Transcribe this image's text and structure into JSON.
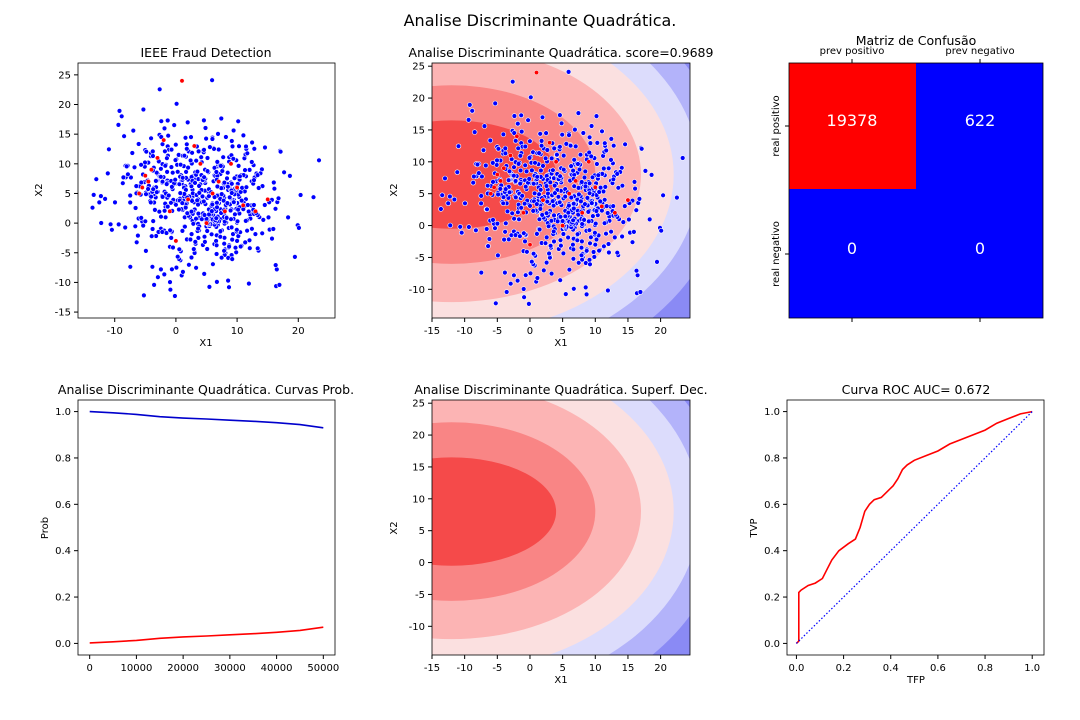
{
  "figure": {
    "suptitle": "Analise Discriminante Quadrática.",
    "colors": {
      "blue": "#0000ff",
      "red": "#ff0000",
      "dark_blue": "#0000cc"
    }
  },
  "chart_data": [
    {
      "id": "scatter",
      "type": "scatter",
      "title": "IEEE Fraud Detection",
      "xlabel": "X1",
      "ylabel": "X2",
      "xlim": [
        -16,
        26
      ],
      "ylim": [
        -16,
        27
      ],
      "xticks": [
        -10,
        0,
        10,
        20
      ],
      "yticks": [
        -15,
        -10,
        -5,
        0,
        5,
        10,
        15,
        20,
        25
      ],
      "series": [
        {
          "color": "#0000ff",
          "clusters": [
            [
              -3,
              6,
              2,
              30
            ],
            [
              5,
              3,
              3,
              60
            ],
            [
              9,
              4,
              2,
              50
            ],
            [
              9,
              -4,
              1.2,
              20
            ],
            [
              -1,
              10,
              2,
              15
            ]
          ],
          "spread": [
            4,
            9.5,
            8.5,
            480
          ]
        },
        {
          "color": "#ff0000",
          "points": [
            [
              -5,
              8
            ],
            [
              -4.5,
              7
            ],
            [
              -5.5,
              6
            ],
            [
              -3,
              11
            ],
            [
              1,
              24
            ],
            [
              -1,
              2
            ],
            [
              2,
              4
            ],
            [
              9,
              10
            ],
            [
              11,
              3
            ],
            [
              13,
              2
            ],
            [
              5,
              0
            ],
            [
              4,
              10
            ],
            [
              7,
              7
            ],
            [
              -2,
              14
            ],
            [
              15,
              4
            ],
            [
              0,
              -3
            ],
            [
              -6,
              5
            ],
            [
              3,
              13
            ],
            [
              6,
              5
            ],
            [
              8,
              2
            ],
            [
              -4,
              9
            ],
            [
              10,
              6
            ]
          ]
        }
      ]
    },
    {
      "id": "boundary",
      "type": "contour",
      "title": "Analise Discriminante Quadrática. score=0.9689",
      "xlabel": "X1",
      "ylabel": "X2",
      "xlim": [
        -15,
        24.5
      ],
      "ylim": [
        -14.5,
        25.5
      ],
      "xticks": [
        -15,
        -10,
        -5,
        0,
        5,
        10,
        15,
        20
      ],
      "yticks": [
        -10,
        -5,
        0,
        5,
        10,
        15,
        20,
        25
      ],
      "overlay": "scatter"
    },
    {
      "id": "cm",
      "type": "heatmap",
      "title": "Matriz de Confusão",
      "col_labels": [
        "prev positivo",
        "prev negativo"
      ],
      "row_labels": [
        "real positivo",
        "real negativo"
      ],
      "values": [
        [
          19378,
          622
        ],
        [
          0,
          0
        ]
      ],
      "cell_colors": [
        [
          "#ff0000",
          "#0000ff"
        ],
        [
          "#0000ff",
          "#0000ff"
        ]
      ]
    },
    {
      "id": "prob",
      "type": "line",
      "title": "Analise Discriminante Quadrática. Curvas Prob.",
      "xlabel": "",
      "ylabel": "Prob",
      "xlim": [
        -2500,
        52500
      ],
      "ylim": [
        -0.05,
        1.05
      ],
      "xticks": [
        0,
        10000,
        20000,
        30000,
        40000,
        50000
      ],
      "yticks": [
        0.0,
        0.2,
        0.4,
        0.6,
        0.8,
        1.0
      ],
      "series": [
        {
          "color": "#0000cc",
          "x": [
            0,
            5000,
            10000,
            15000,
            20000,
            25000,
            30000,
            35000,
            40000,
            45000,
            50000
          ],
          "values": [
            1.0,
            0.995,
            0.988,
            0.978,
            0.972,
            0.968,
            0.963,
            0.958,
            0.952,
            0.944,
            0.93
          ]
        },
        {
          "color": "#ff0000",
          "x": [
            0,
            5000,
            10000,
            15000,
            20000,
            25000,
            30000,
            35000,
            40000,
            45000,
            50000
          ],
          "values": [
            0.002,
            0.007,
            0.013,
            0.022,
            0.028,
            0.032,
            0.037,
            0.042,
            0.048,
            0.056,
            0.07
          ]
        }
      ]
    },
    {
      "id": "surface",
      "type": "contour",
      "title": "Analise Discriminante Quadrática. Superf. Dec.",
      "xlabel": "X1",
      "ylabel": "X2",
      "xlim": [
        -15,
        24.5
      ],
      "ylim": [
        -14.5,
        25.5
      ],
      "xticks": [
        -15,
        -10,
        -5,
        0,
        5,
        10,
        15,
        20
      ],
      "yticks": [
        -10,
        -5,
        0,
        5,
        10,
        15,
        20,
        25
      ]
    },
    {
      "id": "roc",
      "type": "line",
      "title": "Curva ROC AUC= 0.672",
      "xlabel": "TFP",
      "ylabel": "TVP",
      "xlim": [
        -0.04,
        1.05
      ],
      "ylim": [
        -0.05,
        1.05
      ],
      "xticks": [
        0.0,
        0.2,
        0.4,
        0.6,
        0.8,
        1.0
      ],
      "yticks": [
        0.0,
        0.2,
        0.4,
        0.6,
        0.8,
        1.0
      ],
      "series": [
        {
          "color": "#ff0000",
          "x": [
            0,
            0.01,
            0.01,
            0.02,
            0.05,
            0.08,
            0.11,
            0.13,
            0.15,
            0.18,
            0.22,
            0.25,
            0.27,
            0.29,
            0.31,
            0.33,
            0.36,
            0.39,
            0.41,
            0.43,
            0.45,
            0.47,
            0.5,
            0.55,
            0.6,
            0.65,
            0.7,
            0.75,
            0.8,
            0.85,
            0.9,
            0.95,
            1.0
          ],
          "values": [
            0,
            0.01,
            0.22,
            0.23,
            0.25,
            0.26,
            0.28,
            0.32,
            0.36,
            0.4,
            0.43,
            0.45,
            0.5,
            0.57,
            0.6,
            0.62,
            0.63,
            0.66,
            0.68,
            0.71,
            0.75,
            0.77,
            0.79,
            0.81,
            0.83,
            0.86,
            0.88,
            0.9,
            0.92,
            0.95,
            0.97,
            0.99,
            1.0
          ]
        },
        {
          "color": "#0000ff",
          "x": [
            0,
            1
          ],
          "values": [
            0,
            1
          ],
          "dashed": true
        }
      ]
    }
  ]
}
